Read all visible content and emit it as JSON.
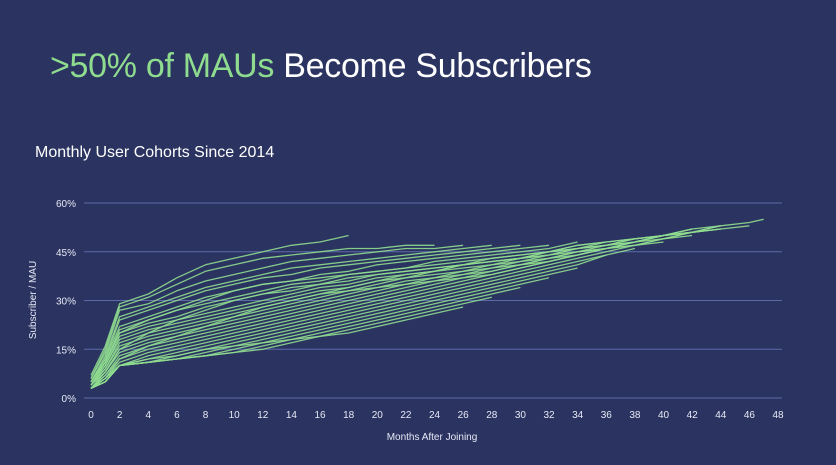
{
  "header": {
    "title_highlight": ">50% of MAUs",
    "title_rest": "Become Subscribers",
    "subtitle": "Monthly User Cohorts Since 2014"
  },
  "colors": {
    "background": "#2b3461",
    "accent": "#8fdc8f",
    "grid": "#5d6aa8"
  },
  "chart_data": {
    "type": "line",
    "title": "Monthly User Cohorts Since 2014",
    "xlabel": "Months After Joining",
    "ylabel": "Subscriber / MAU",
    "xlim": [
      0,
      48
    ],
    "ylim": [
      0,
      60
    ],
    "xticks": [
      "0",
      "2",
      "4",
      "6",
      "8",
      "10",
      "12",
      "14",
      "16",
      "18",
      "20",
      "22",
      "24",
      "26",
      "28",
      "30",
      "32",
      "34",
      "36",
      "38",
      "40",
      "42",
      "44",
      "46",
      "48"
    ],
    "yticks": [
      "0%",
      "15%",
      "30%",
      "45%",
      "60%"
    ],
    "grid": true,
    "legend": "none",
    "series": [
      {
        "x": [
          0,
          1,
          2,
          4,
          6,
          8,
          10,
          12,
          14,
          16,
          18
        ],
        "values": [
          7,
          16,
          29,
          32,
          37,
          41,
          43,
          45,
          47,
          48,
          50
        ]
      },
      {
        "x": [
          0,
          1,
          2,
          4,
          6,
          8,
          10,
          12,
          14,
          16,
          18,
          20,
          22,
          24
        ],
        "values": [
          6,
          15,
          28,
          31,
          35,
          39,
          41,
          43,
          44,
          45,
          46,
          46,
          47,
          47
        ]
      },
      {
        "x": [
          0,
          1,
          2,
          4,
          6,
          8,
          10,
          12,
          14,
          16,
          18,
          20,
          22,
          24,
          26
        ],
        "values": [
          6,
          14,
          27,
          29,
          33,
          36,
          38,
          40,
          42,
          43,
          44,
          45,
          46,
          46,
          47
        ]
      },
      {
        "x": [
          0,
          1,
          2,
          4,
          6,
          8,
          10,
          12,
          14,
          16,
          18,
          20,
          22,
          24,
          26,
          28
        ],
        "values": [
          5,
          13,
          25,
          28,
          31,
          34,
          36,
          38,
          40,
          41,
          42,
          43,
          44,
          45,
          46,
          47
        ]
      },
      {
        "x": [
          0,
          1,
          2,
          4,
          6,
          8,
          10,
          12,
          14,
          16,
          18,
          20,
          22,
          24,
          26,
          28,
          30
        ],
        "values": [
          5,
          12,
          24,
          27,
          30,
          33,
          35,
          37,
          38,
          40,
          41,
          42,
          43,
          44,
          45,
          46,
          47
        ]
      },
      {
        "x": [
          0,
          1,
          2,
          4,
          6,
          8,
          10,
          12,
          14,
          16,
          18,
          20,
          22,
          24,
          26,
          28,
          30,
          32
        ],
        "values": [
          5,
          12,
          22,
          25,
          28,
          31,
          33,
          35,
          36,
          38,
          39,
          41,
          42,
          43,
          44,
          45,
          46,
          47
        ]
      },
      {
        "x": [
          0,
          1,
          2,
          4,
          6,
          8,
          10,
          12,
          14,
          16,
          18,
          20,
          22,
          24,
          26,
          28,
          30,
          32,
          34
        ],
        "values": [
          5,
          11,
          21,
          24,
          27,
          29,
          31,
          33,
          35,
          36,
          38,
          39,
          40,
          42,
          43,
          44,
          45,
          46,
          48
        ]
      },
      {
        "x": [
          0,
          1,
          2,
          4,
          6,
          8,
          10,
          12,
          14,
          16,
          18,
          20,
          22,
          24,
          26,
          28,
          30,
          32,
          34,
          36
        ],
        "values": [
          4,
          11,
          20,
          23,
          25,
          28,
          30,
          32,
          33,
          35,
          36,
          38,
          39,
          40,
          41,
          43,
          44,
          45,
          47,
          48
        ]
      },
      {
        "x": [
          0,
          1,
          2,
          4,
          6,
          8,
          10,
          12,
          14,
          16,
          18,
          20,
          22,
          24,
          26,
          28,
          30,
          32,
          34,
          36,
          38
        ],
        "values": [
          4,
          10,
          19,
          22,
          24,
          26,
          28,
          30,
          32,
          34,
          35,
          37,
          38,
          39,
          41,
          42,
          43,
          45,
          46,
          48,
          49
        ]
      },
      {
        "x": [
          0,
          1,
          2,
          4,
          6,
          8,
          10,
          12,
          14,
          16,
          18,
          20,
          22,
          24,
          26,
          28,
          30,
          32,
          34,
          36,
          38,
          40
        ],
        "values": [
          4,
          10,
          18,
          21,
          23,
          25,
          27,
          29,
          31,
          33,
          34,
          36,
          37,
          39,
          40,
          41,
          43,
          44,
          46,
          47,
          49,
          50
        ]
      },
      {
        "x": [
          0,
          1,
          2,
          4,
          6,
          8,
          10,
          12,
          14,
          16,
          18,
          20,
          22,
          24,
          26,
          28,
          30,
          32,
          34,
          36,
          38,
          40,
          42
        ],
        "values": [
          4,
          9,
          17,
          20,
          22,
          24,
          26,
          28,
          30,
          32,
          33,
          35,
          37,
          38,
          39,
          41,
          42,
          44,
          45,
          47,
          48,
          50,
          52
        ]
      },
      {
        "x": [
          0,
          1,
          2,
          4,
          6,
          8,
          10,
          12,
          14,
          16,
          18,
          20,
          22,
          24,
          26,
          28,
          30,
          32,
          34,
          36,
          38,
          40,
          42,
          44
        ],
        "values": [
          4,
          9,
          16,
          19,
          21,
          23,
          25,
          27,
          29,
          31,
          33,
          34,
          36,
          37,
          39,
          40,
          42,
          43,
          45,
          46,
          48,
          50,
          51,
          53
        ]
      },
      {
        "x": [
          0,
          1,
          2,
          4,
          6,
          8,
          10,
          12,
          14,
          16,
          18,
          20,
          22,
          24,
          26,
          28,
          30,
          32,
          34,
          36,
          38,
          40,
          42,
          44,
          46,
          47
        ],
        "values": [
          3,
          8,
          15,
          18,
          20,
          22,
          24,
          26,
          28,
          30,
          32,
          34,
          35,
          37,
          38,
          40,
          41,
          43,
          45,
          46,
          48,
          50,
          52,
          53,
          54,
          55
        ]
      },
      {
        "x": [
          0,
          1,
          2,
          4,
          6,
          8,
          10,
          12,
          14,
          16,
          18,
          20,
          22,
          24,
          26,
          28,
          30,
          32,
          34,
          36,
          38,
          40,
          42,
          44
        ],
        "values": [
          3,
          8,
          14,
          17,
          19,
          21,
          23,
          25,
          27,
          29,
          31,
          33,
          35,
          36,
          38,
          39,
          41,
          43,
          44,
          46,
          48,
          49,
          51,
          52
        ]
      },
      {
        "x": [
          0,
          1,
          2,
          4,
          6,
          8,
          10,
          12,
          14,
          16,
          18,
          20,
          22,
          24,
          26,
          28,
          30,
          32,
          34,
          36,
          38,
          40,
          42
        ],
        "values": [
          3,
          7,
          13,
          16,
          18,
          20,
          22,
          24,
          26,
          28,
          30,
          32,
          34,
          36,
          37,
          39,
          41,
          42,
          44,
          46,
          48,
          50,
          51
        ]
      },
      {
        "x": [
          0,
          1,
          2,
          4,
          6,
          8,
          10,
          12,
          14,
          16,
          18,
          20,
          22,
          24,
          26,
          28,
          30,
          32,
          34,
          36,
          38,
          40,
          42,
          44
        ],
        "values": [
          3,
          7,
          12,
          15,
          17,
          19,
          21,
          23,
          25,
          27,
          29,
          31,
          33,
          35,
          37,
          38,
          40,
          42,
          44,
          46,
          47,
          49,
          51,
          53
        ]
      },
      {
        "x": [
          0,
          1,
          2,
          4,
          6,
          8,
          10,
          12,
          14,
          16,
          18,
          20,
          22,
          24,
          26,
          28,
          30,
          32,
          34,
          36,
          38,
          40,
          42
        ],
        "values": [
          3,
          6,
          11,
          14,
          16,
          18,
          20,
          22,
          24,
          26,
          28,
          30,
          32,
          34,
          36,
          38,
          40,
          42,
          44,
          46,
          47,
          49,
          50
        ]
      },
      {
        "x": [
          0,
          1,
          2,
          4,
          6,
          8,
          10,
          12,
          14,
          16,
          18,
          20,
          22,
          24,
          26,
          28,
          30,
          32,
          34,
          36,
          38,
          40
        ],
        "values": [
          3,
          6,
          10,
          13,
          15,
          17,
          19,
          21,
          23,
          25,
          27,
          29,
          31,
          33,
          35,
          37,
          39,
          41,
          43,
          45,
          47,
          48
        ]
      },
      {
        "x": [
          0,
          1,
          2,
          4,
          6,
          8,
          10,
          12,
          14,
          16,
          18,
          20,
          22,
          24,
          26,
          28,
          30,
          32,
          34,
          36,
          38
        ],
        "values": [
          3,
          6,
          10,
          12,
          14,
          16,
          18,
          20,
          22,
          24,
          26,
          28,
          30,
          32,
          34,
          36,
          38,
          40,
          42,
          44,
          46
        ]
      },
      {
        "x": [
          0,
          1,
          2,
          4,
          6,
          8,
          10,
          12,
          14,
          16,
          18,
          20,
          22,
          24,
          26,
          28,
          30,
          32,
          34,
          36
        ],
        "values": [
          3,
          5,
          10,
          12,
          13,
          15,
          17,
          19,
          21,
          23,
          25,
          27,
          29,
          31,
          33,
          35,
          37,
          39,
          41,
          44
        ]
      },
      {
        "x": [
          0,
          1,
          2,
          4,
          6,
          8,
          10,
          12,
          14,
          16,
          18,
          20,
          22,
          24,
          26,
          28,
          30,
          32,
          34
        ],
        "values": [
          3,
          5,
          10,
          11,
          13,
          15,
          16,
          18,
          20,
          22,
          24,
          26,
          28,
          30,
          32,
          34,
          36,
          38,
          40
        ]
      },
      {
        "x": [
          0,
          1,
          2,
          4,
          6,
          8,
          10,
          12,
          14,
          16,
          18,
          20,
          22,
          24,
          26,
          28,
          30,
          32
        ],
        "values": [
          3,
          5,
          10,
          11,
          12,
          14,
          16,
          17,
          19,
          21,
          23,
          25,
          27,
          29,
          31,
          33,
          35,
          37
        ]
      },
      {
        "x": [
          0,
          1,
          2,
          4,
          6,
          8,
          10,
          12,
          14,
          16,
          18,
          20,
          22,
          24,
          26,
          28,
          30
        ],
        "values": [
          3,
          5,
          10,
          11,
          12,
          13,
          15,
          17,
          18,
          20,
          22,
          24,
          26,
          28,
          30,
          32,
          34
        ]
      },
      {
        "x": [
          0,
          1,
          2,
          4,
          6,
          8,
          10,
          12,
          14,
          16,
          18,
          20,
          22,
          24,
          26,
          28
        ],
        "values": [
          3,
          5,
          10,
          11,
          12,
          13,
          14,
          16,
          18,
          19,
          21,
          23,
          25,
          27,
          29,
          31
        ]
      },
      {
        "x": [
          0,
          1,
          2,
          4,
          6,
          8,
          10,
          12,
          14,
          16,
          18,
          20,
          22,
          24,
          26
        ],
        "values": [
          3,
          5,
          10,
          11,
          12,
          13,
          14,
          15,
          17,
          19,
          20,
          22,
          24,
          26,
          28
        ]
      },
      {
        "x": [
          0,
          1,
          2,
          4,
          6,
          8,
          10,
          12,
          14,
          16,
          18,
          20,
          22,
          24,
          26,
          28,
          30,
          32,
          34,
          36,
          38,
          40,
          42,
          44,
          46
        ],
        "values": [
          3,
          6,
          12,
          16,
          19,
          22,
          25,
          28,
          30,
          32,
          34,
          36,
          38,
          39,
          41,
          42,
          43,
          44,
          46,
          47,
          49,
          50,
          51,
          52,
          53
        ]
      },
      {
        "x": [
          0,
          1,
          2,
          4,
          6,
          8,
          10,
          12,
          14,
          16,
          18,
          20,
          22,
          24,
          26,
          28,
          30,
          32,
          34,
          36,
          38,
          40,
          42,
          44
        ],
        "values": [
          4,
          8,
          15,
          20,
          24,
          27,
          30,
          32,
          34,
          35,
          37,
          38,
          39,
          40,
          41,
          42,
          43,
          45,
          46,
          47,
          48,
          50,
          51,
          52
        ]
      },
      {
        "x": [
          0,
          1,
          2,
          4,
          6,
          8,
          10,
          12,
          14,
          16,
          18,
          20,
          22,
          24,
          26,
          28,
          30,
          32,
          34,
          36,
          38,
          40,
          42
        ],
        "values": [
          5,
          11,
          20,
          24,
          27,
          30,
          33,
          35,
          36,
          37,
          38,
          39,
          40,
          41,
          42,
          43,
          44,
          45,
          47,
          48,
          49,
          50,
          52
        ]
      }
    ]
  }
}
